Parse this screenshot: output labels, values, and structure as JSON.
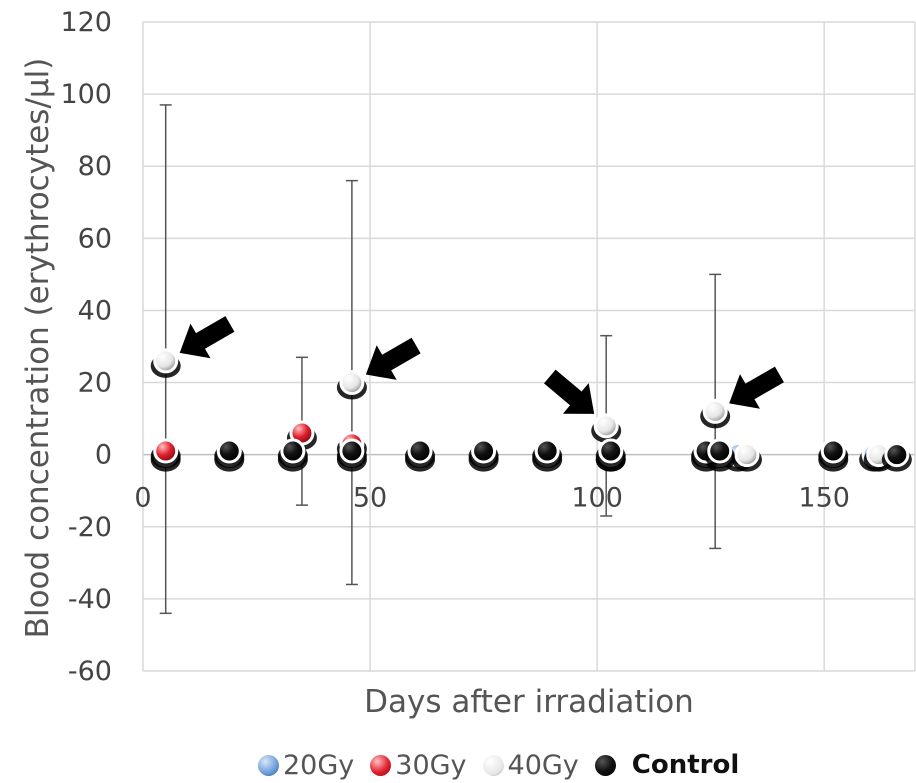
{
  "chart_data": {
    "type": "scatter",
    "title": "",
    "xlabel": "Days after irradiation",
    "ylabel": "Blood concentration (erythrocytes/µl)",
    "xlim": [
      0,
      170
    ],
    "ylim": [
      -60,
      120
    ],
    "x_ticks": [
      0,
      50,
      100,
      150
    ],
    "y_ticks": [
      -60,
      -40,
      -20,
      0,
      20,
      40,
      60,
      80,
      100,
      120
    ],
    "grid": true,
    "legend_position": "bottom",
    "series": [
      {
        "name": "20Gy",
        "color": "#5b8fd0",
        "points": [
          {
            "x": 5,
            "y": 0
          },
          {
            "x": 19,
            "y": 0
          },
          {
            "x": 33,
            "y": 0
          },
          {
            "x": 46,
            "y": 0
          },
          {
            "x": 61,
            "y": 0
          },
          {
            "x": 75,
            "y": 0
          },
          {
            "x": 89,
            "y": 0
          },
          {
            "x": 103,
            "y": 0
          },
          {
            "x": 124,
            "y": 0
          },
          {
            "x": 131,
            "y": 0
          },
          {
            "x": 152,
            "y": 0
          },
          {
            "x": 161,
            "y": 0
          }
        ]
      },
      {
        "name": "30Gy",
        "color": "#e0202e",
        "points": [
          {
            "x": 5,
            "y": 1
          },
          {
            "x": 35,
            "y": 6
          },
          {
            "x": 46,
            "y": 3
          },
          {
            "x": 103,
            "y": 0
          },
          {
            "x": 127,
            "y": 0
          }
        ]
      },
      {
        "name": "40Gy",
        "color": "#f2f2f2",
        "points": [
          {
            "x": 5,
            "y": 26,
            "err_low": -44,
            "err_high": 97
          },
          {
            "x": 46,
            "y": 20,
            "err_low": -36,
            "err_high": 76
          },
          {
            "x": 102,
            "y": 8,
            "err_low": -17,
            "err_high": 33
          },
          {
            "x": 126,
            "y": 12,
            "err_low": -26,
            "err_high": 50
          },
          {
            "x": 133,
            "y": 0
          },
          {
            "x": 162,
            "y": 0
          }
        ]
      },
      {
        "name": "Control",
        "color": "#111111",
        "points": [
          {
            "x": 19,
            "y": 1
          },
          {
            "x": 33,
            "y": 1
          },
          {
            "x": 46,
            "y": 1
          },
          {
            "x": 61,
            "y": 1
          },
          {
            "x": 75,
            "y": 1
          },
          {
            "x": 89,
            "y": 1
          },
          {
            "x": 103,
            "y": 1
          },
          {
            "x": 124,
            "y": 1
          },
          {
            "x": 127,
            "y": 1
          },
          {
            "x": 152,
            "y": 1
          },
          {
            "x": 166,
            "y": 0
          }
        ]
      }
    ],
    "extra_error_bars": [
      {
        "x": 35,
        "low": -14,
        "high": 27
      }
    ],
    "annotations": [
      {
        "kind": "arrow",
        "target": {
          "x": 5,
          "y": 26
        },
        "direction": "down-left"
      },
      {
        "kind": "arrow",
        "target": {
          "x": 46,
          "y": 20
        },
        "direction": "down-left"
      },
      {
        "kind": "arrow",
        "target": {
          "x": 102,
          "y": 8
        },
        "direction": "down-right"
      },
      {
        "kind": "arrow",
        "target": {
          "x": 126,
          "y": 12
        },
        "direction": "down-left"
      }
    ]
  }
}
